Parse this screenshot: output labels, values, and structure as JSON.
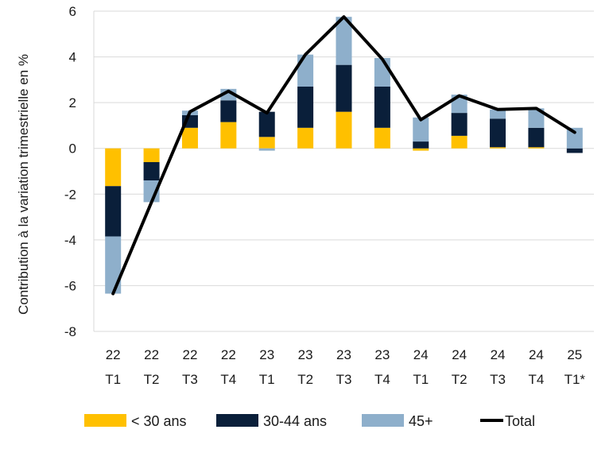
{
  "chart_data": {
    "type": "bar",
    "stacked": true,
    "title": "",
    "xlabel": "",
    "ylabel": "Contribution à la variation trimestrielle en %",
    "ylim": [
      -8,
      6
    ],
    "yticks": [
      -8,
      -6,
      -4,
      -2,
      0,
      2,
      4,
      6
    ],
    "grid": true,
    "legend_position": "bottom",
    "categories": [
      [
        "22",
        "T1"
      ],
      [
        "22",
        "T2"
      ],
      [
        "22",
        "T3"
      ],
      [
        "22",
        "T4"
      ],
      [
        "23",
        "T1"
      ],
      [
        "23",
        "T2"
      ],
      [
        "23",
        "T3"
      ],
      [
        "23",
        "T4"
      ],
      [
        "24",
        "T1"
      ],
      [
        "24",
        "T2"
      ],
      [
        "24",
        "T3"
      ],
      [
        "24",
        "T4"
      ],
      [
        "25",
        "T1*"
      ]
    ],
    "series": [
      {
        "name": "< 30 ans",
        "kind": "bar",
        "color": "#FFC000",
        "values": [
          -1.65,
          -0.6,
          0.9,
          1.15,
          0.5,
          0.9,
          1.6,
          0.9,
          -0.1,
          0.55,
          0.05,
          0.05,
          0.0
        ]
      },
      {
        "name": "30-44 ans",
        "kind": "bar",
        "color": "#0A1F3A",
        "values": [
          -2.2,
          -0.8,
          0.55,
          0.95,
          1.1,
          1.8,
          2.05,
          1.8,
          0.3,
          1.0,
          1.25,
          0.85,
          -0.2
        ]
      },
      {
        "name": "45+",
        "kind": "bar",
        "color": "#8EAFCB",
        "values": [
          -2.5,
          -0.95,
          0.2,
          0.5,
          -0.1,
          1.4,
          2.1,
          1.25,
          1.05,
          0.8,
          0.4,
          0.85,
          0.9
        ]
      },
      {
        "name": "Total",
        "kind": "line",
        "color": "#000000",
        "values": [
          -6.35,
          -2.35,
          1.6,
          2.5,
          1.55,
          4.1,
          5.75,
          3.9,
          1.25,
          2.3,
          1.7,
          1.75,
          0.7
        ]
      }
    ]
  }
}
